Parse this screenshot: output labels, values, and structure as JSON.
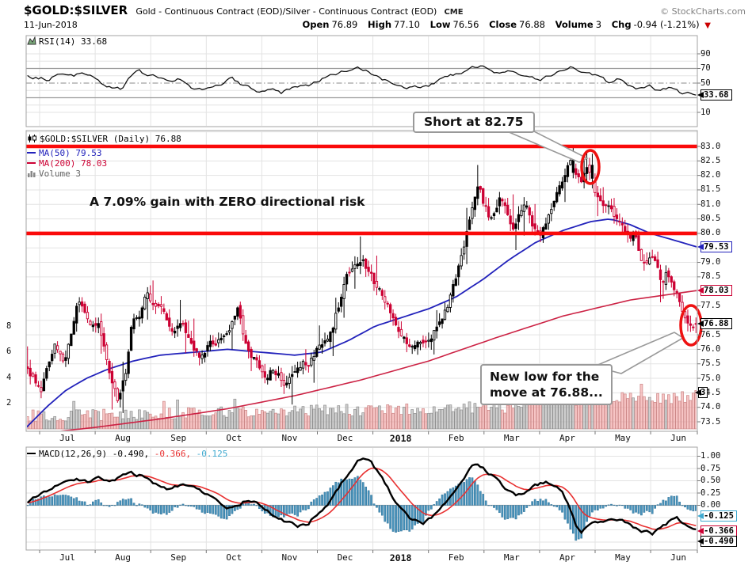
{
  "header": {
    "symbol": "$GOLD:$SILVER",
    "description": "Gold - Continuous Contract (EOD)/Silver - Continuous Contract (EOD)",
    "exchange": "CME",
    "copyright": "© StockCharts.com",
    "date": "11-Jun-2018",
    "quote": {
      "open_label": "Open",
      "open": "76.89",
      "high_label": "High",
      "high": "77.10",
      "low_label": "Low",
      "low": "76.56",
      "close_label": "Close",
      "close": "76.88",
      "volume_label": "Volume",
      "volume": "3",
      "chg_label": "Chg",
      "chg": "-0.94 (-1.21%)",
      "chg_arrow": "▼"
    }
  },
  "legends": {
    "rsi": "RSI(14) 33.68",
    "main_title": "$GOLD:$SILVER (Daily) 76.88",
    "ma50": "MA(50) 79.53",
    "ma200": "MA(200) 78.03",
    "volume": "Volume 3",
    "macd_black": "MACD(12,26,9) -0.490,",
    "macd_red": " -0.366,",
    "macd_blue": " -0.125"
  },
  "annotations": {
    "short_note": "Short at 82.75",
    "gain_note": "A 7.09% gain with ZERO directional risk",
    "low_note_line1": "New low for the",
    "low_note_line2": "move at 76.88..."
  },
  "tags": {
    "rsi": "33.68",
    "ma50": "79.53",
    "ma200": "78.03",
    "close": "76.88",
    "volume": "3",
    "hist": "-0.125",
    "signal": "-0.366",
    "macd": "-0.490"
  },
  "axes": {
    "months": [
      "Jul",
      "Aug",
      "Sep",
      "Oct",
      "Nov",
      "Dec",
      "2018",
      "Feb",
      "Mar",
      "Apr",
      "May",
      "Jun"
    ],
    "bold_month": "2018",
    "price_tick_values": [
      83.0,
      82.5,
      82.0,
      81.5,
      81.0,
      80.5,
      80.0,
      79.0,
      78.5,
      77.5,
      76.5,
      76.0,
      75.5,
      75.0,
      74.5,
      74.0,
      73.5
    ],
    "rsi_tick_values": [
      90,
      70,
      50,
      10
    ],
    "macd_tick_values": [
      1.0,
      0.75,
      0.5,
      0.25,
      0.0
    ],
    "volume_tick_values": [
      8,
      6,
      4,
      2
    ]
  },
  "colors": {
    "resistance": "#fa0a0a",
    "candle_up": "#000000",
    "candle_down": "#cc0033",
    "ma50": "#2222bb",
    "ma200": "#cc2244",
    "volume_up_fill": "rgba(175,175,175,0.6)",
    "volume_up_stroke": "#909090",
    "volume_down_fill": "rgba(240,150,150,0.55)",
    "volume_down_stroke": "#cc8888",
    "macd_line": "#000000",
    "macd_signal": "#e83030",
    "macd_hist_fill": "#4a94bc",
    "macd_hist_stroke": "#2d7097",
    "rsi_line": "#111111",
    "annotation_red": "#ee1111",
    "grid": "#e3e3e3",
    "band": "#9a9a9a",
    "border": "#a3a3a3"
  },
  "chart_data": {
    "type": "candlestick+indicators",
    "symbol": "$GOLD:$SILVER",
    "timeframe": "Daily",
    "x_range": [
      "Jun-2017",
      "11-Jun-2018"
    ],
    "last_ohlc": {
      "open": 76.89,
      "high": 77.1,
      "low": 76.56,
      "close": 76.88,
      "volume": 3,
      "change": -0.94,
      "change_pct": -1.21
    },
    "price_ylim": [
      73.2,
      83.55
    ],
    "price_tick_step": 0.5,
    "resistance_levels": [
      83.0,
      80.0
    ],
    "highlight_points": [
      {
        "label": "Short at 82.75",
        "price": 82.75
      },
      {
        "label": "New low for the move at 76.88...",
        "price": 76.88
      }
    ],
    "rsi": {
      "period": 14,
      "last": 33.68,
      "bands": [
        70,
        50,
        30
      ],
      "display_range": [
        10,
        90
      ],
      "anchors": [
        [
          0,
          60
        ],
        [
          0.03,
          55
        ],
        [
          0.05,
          63
        ],
        [
          0.07,
          58
        ],
        [
          0.08,
          66
        ],
        [
          0.095,
          60
        ],
        [
          0.11,
          51
        ],
        [
          0.125,
          44
        ],
        [
          0.14,
          42
        ],
        [
          0.152,
          56
        ],
        [
          0.165,
          68
        ],
        [
          0.18,
          59
        ],
        [
          0.2,
          58
        ],
        [
          0.215,
          50
        ],
        [
          0.23,
          56
        ],
        [
          0.245,
          45
        ],
        [
          0.26,
          42
        ],
        [
          0.275,
          44
        ],
        [
          0.29,
          48
        ],
        [
          0.305,
          56
        ],
        [
          0.32,
          48
        ],
        [
          0.335,
          42
        ],
        [
          0.35,
          38
        ],
        [
          0.365,
          41
        ],
        [
          0.38,
          37
        ],
        [
          0.4,
          45
        ],
        [
          0.42,
          48
        ],
        [
          0.44,
          56
        ],
        [
          0.46,
          62
        ],
        [
          0.48,
          68
        ],
        [
          0.5,
          70
        ],
        [
          0.515,
          62
        ],
        [
          0.53,
          55
        ],
        [
          0.55,
          47
        ],
        [
          0.565,
          42
        ],
        [
          0.58,
          45
        ],
        [
          0.6,
          48
        ],
        [
          0.62,
          55
        ],
        [
          0.64,
          62
        ],
        [
          0.66,
          69
        ],
        [
          0.675,
          73
        ],
        [
          0.69,
          70
        ],
        [
          0.705,
          64
        ],
        [
          0.72,
          68
        ],
        [
          0.735,
          61
        ],
        [
          0.75,
          57
        ],
        [
          0.765,
          54
        ],
        [
          0.78,
          60
        ],
        [
          0.8,
          66
        ],
        [
          0.812,
          73
        ],
        [
          0.825,
          68
        ],
        [
          0.84,
          64
        ],
        [
          0.855,
          57
        ],
        [
          0.87,
          51
        ],
        [
          0.885,
          55
        ],
        [
          0.9,
          47
        ],
        [
          0.915,
          42
        ],
        [
          0.93,
          46
        ],
        [
          0.945,
          40
        ],
        [
          0.96,
          44
        ],
        [
          0.975,
          38
        ],
        [
          0.99,
          35
        ],
        [
          1,
          33.68
        ]
      ]
    },
    "close_anchors": [
      [
        0,
        75.2
      ],
      [
        0.02,
        74.6
      ],
      [
        0.04,
        76.2
      ],
      [
        0.055,
        75.7
      ],
      [
        0.068,
        76.9
      ],
      [
        0.076,
        77.9
      ],
      [
        0.085,
        77.4
      ],
      [
        0.095,
        76.9
      ],
      [
        0.105,
        77.1
      ],
      [
        0.115,
        76.1
      ],
      [
        0.125,
        74.7
      ],
      [
        0.135,
        74.2
      ],
      [
        0.148,
        75.4
      ],
      [
        0.156,
        77.1
      ],
      [
        0.166,
        76.9
      ],
      [
        0.178,
        77.8
      ],
      [
        0.19,
        77.2
      ],
      [
        0.2,
        77.4
      ],
      [
        0.215,
        76.6
      ],
      [
        0.23,
        77.1
      ],
      [
        0.245,
        76.1
      ],
      [
        0.26,
        75.7
      ],
      [
        0.275,
        76.2
      ],
      [
        0.29,
        76.4
      ],
      [
        0.305,
        77.0
      ],
      [
        0.315,
        77.4
      ],
      [
        0.325,
        76.2
      ],
      [
        0.34,
        75.6
      ],
      [
        0.355,
        75.1
      ],
      [
        0.37,
        75.3
      ],
      [
        0.385,
        74.9
      ],
      [
        0.4,
        75.4
      ],
      [
        0.42,
        75.6
      ],
      [
        0.44,
        76.2
      ],
      [
        0.455,
        76.6
      ],
      [
        0.465,
        77.5
      ],
      [
        0.475,
        78.3
      ],
      [
        0.49,
        79.0
      ],
      [
        0.5,
        79.3
      ],
      [
        0.51,
        78.7
      ],
      [
        0.522,
        78.1
      ],
      [
        0.535,
        77.6
      ],
      [
        0.55,
        77.0
      ],
      [
        0.565,
        76.4
      ],
      [
        0.578,
        75.9
      ],
      [
        0.59,
        76.3
      ],
      [
        0.602,
        76.1
      ],
      [
        0.615,
        76.9
      ],
      [
        0.63,
        77.6
      ],
      [
        0.64,
        78.4
      ],
      [
        0.65,
        79.2
      ],
      [
        0.66,
        80.2
      ],
      [
        0.668,
        81.1
      ],
      [
        0.675,
        81.9
      ],
      [
        0.682,
        81.2
      ],
      [
        0.69,
        80.6
      ],
      [
        0.7,
        80.9
      ],
      [
        0.708,
        81.5
      ],
      [
        0.716,
        80.8
      ],
      [
        0.725,
        80.2
      ],
      [
        0.735,
        80.7
      ],
      [
        0.745,
        81.1
      ],
      [
        0.755,
        80.4
      ],
      [
        0.765,
        79.9
      ],
      [
        0.775,
        80.4
      ],
      [
        0.785,
        80.9
      ],
      [
        0.795,
        81.5
      ],
      [
        0.805,
        82.1
      ],
      [
        0.812,
        82.6
      ],
      [
        0.82,
        82.1
      ],
      [
        0.828,
        81.8
      ],
      [
        0.836,
        82.3
      ],
      [
        0.843,
        82.0
      ],
      [
        0.852,
        81.3
      ],
      [
        0.862,
        80.7
      ],
      [
        0.872,
        80.9
      ],
      [
        0.882,
        80.4
      ],
      [
        0.892,
        80.1
      ],
      [
        0.9,
        79.8
      ],
      [
        0.908,
        79.9
      ],
      [
        0.917,
        79.3
      ],
      [
        0.925,
        78.8
      ],
      [
        0.933,
        79.4
      ],
      [
        0.94,
        78.9
      ],
      [
        0.948,
        78.3
      ],
      [
        0.956,
        78.7
      ],
      [
        0.964,
        78.1
      ],
      [
        0.972,
        77.8
      ],
      [
        0.98,
        77.4
      ],
      [
        0.988,
        76.9
      ],
      [
        1,
        76.88
      ]
    ],
    "ma50": {
      "period": 50,
      "last": 79.53,
      "anchors": [
        [
          0,
          73.3
        ],
        [
          0.03,
          74.0
        ],
        [
          0.06,
          74.6
        ],
        [
          0.09,
          75.0
        ],
        [
          0.12,
          75.3
        ],
        [
          0.16,
          75.6
        ],
        [
          0.2,
          75.8
        ],
        [
          0.25,
          75.9
        ],
        [
          0.3,
          76.0
        ],
        [
          0.35,
          75.9
        ],
        [
          0.4,
          75.8
        ],
        [
          0.44,
          75.9
        ],
        [
          0.48,
          76.3
        ],
        [
          0.52,
          76.8
        ],
        [
          0.56,
          77.1
        ],
        [
          0.6,
          77.4
        ],
        [
          0.64,
          77.8
        ],
        [
          0.68,
          78.4
        ],
        [
          0.72,
          79.1
        ],
        [
          0.76,
          79.7
        ],
        [
          0.8,
          80.1
        ],
        [
          0.84,
          80.4
        ],
        [
          0.87,
          80.5
        ],
        [
          0.9,
          80.3
        ],
        [
          0.93,
          80.0
        ],
        [
          0.96,
          79.8
        ],
        [
          1,
          79.53
        ]
      ]
    },
    "ma200": {
      "period": 200,
      "last": 78.03,
      "anchors": [
        [
          0,
          73.05
        ],
        [
          0.1,
          73.3
        ],
        [
          0.2,
          73.6
        ],
        [
          0.3,
          73.95
        ],
        [
          0.4,
          74.4
        ],
        [
          0.5,
          74.95
        ],
        [
          0.6,
          75.6
        ],
        [
          0.7,
          76.4
        ],
        [
          0.8,
          77.15
        ],
        [
          0.9,
          77.7
        ],
        [
          1,
          78.03
        ]
      ]
    },
    "macd": {
      "params": [
        12,
        26,
        9
      ],
      "last": -0.49,
      "signal_last": -0.366,
      "hist_last": -0.125,
      "display_range": [
        -0.9,
        1.15
      ],
      "anchors": [
        [
          0,
          0.08
        ],
        [
          0.025,
          0.28
        ],
        [
          0.05,
          0.45
        ],
        [
          0.075,
          0.52
        ],
        [
          0.09,
          0.47
        ],
        [
          0.105,
          0.55
        ],
        [
          0.12,
          0.5
        ],
        [
          0.14,
          0.58
        ],
        [
          0.155,
          0.65
        ],
        [
          0.17,
          0.6
        ],
        [
          0.19,
          0.45
        ],
        [
          0.21,
          0.3
        ],
        [
          0.225,
          0.38
        ],
        [
          0.245,
          0.42
        ],
        [
          0.265,
          0.25
        ],
        [
          0.285,
          0.1
        ],
        [
          0.3,
          -0.05
        ],
        [
          0.315,
          0.02
        ],
        [
          0.33,
          0.12
        ],
        [
          0.345,
          0.02
        ],
        [
          0.36,
          -0.12
        ],
        [
          0.375,
          -0.25
        ],
        [
          0.39,
          -0.35
        ],
        [
          0.405,
          -0.44
        ],
        [
          0.42,
          -0.36
        ],
        [
          0.435,
          -0.15
        ],
        [
          0.45,
          0.05
        ],
        [
          0.465,
          0.35
        ],
        [
          0.48,
          0.65
        ],
        [
          0.495,
          0.9
        ],
        [
          0.505,
          0.95
        ],
        [
          0.515,
          0.85
        ],
        [
          0.53,
          0.55
        ],
        [
          0.545,
          0.2
        ],
        [
          0.56,
          -0.1
        ],
        [
          0.575,
          -0.3
        ],
        [
          0.59,
          -0.38
        ],
        [
          0.605,
          -0.25
        ],
        [
          0.62,
          -0.05
        ],
        [
          0.635,
          0.25
        ],
        [
          0.65,
          0.55
        ],
        [
          0.665,
          0.78
        ],
        [
          0.675,
          0.83
        ],
        [
          0.685,
          0.72
        ],
        [
          0.7,
          0.55
        ],
        [
          0.715,
          0.35
        ],
        [
          0.73,
          0.18
        ],
        [
          0.745,
          0.28
        ],
        [
          0.76,
          0.4
        ],
        [
          0.775,
          0.48
        ],
        [
          0.79,
          0.42
        ],
        [
          0.8,
          0.28
        ],
        [
          0.81,
          0.02
        ],
        [
          0.82,
          -0.38
        ],
        [
          0.828,
          -0.55
        ],
        [
          0.84,
          -0.42
        ],
        [
          0.85,
          -0.3
        ],
        [
          0.86,
          -0.36
        ],
        [
          0.875,
          -0.28
        ],
        [
          0.89,
          -0.33
        ],
        [
          0.905,
          -0.43
        ],
        [
          0.92,
          -0.52
        ],
        [
          0.935,
          -0.58
        ],
        [
          0.95,
          -0.45
        ],
        [
          0.962,
          -0.32
        ],
        [
          0.972,
          -0.28
        ],
        [
          0.982,
          -0.38
        ],
        [
          1,
          -0.49
        ]
      ]
    }
  }
}
